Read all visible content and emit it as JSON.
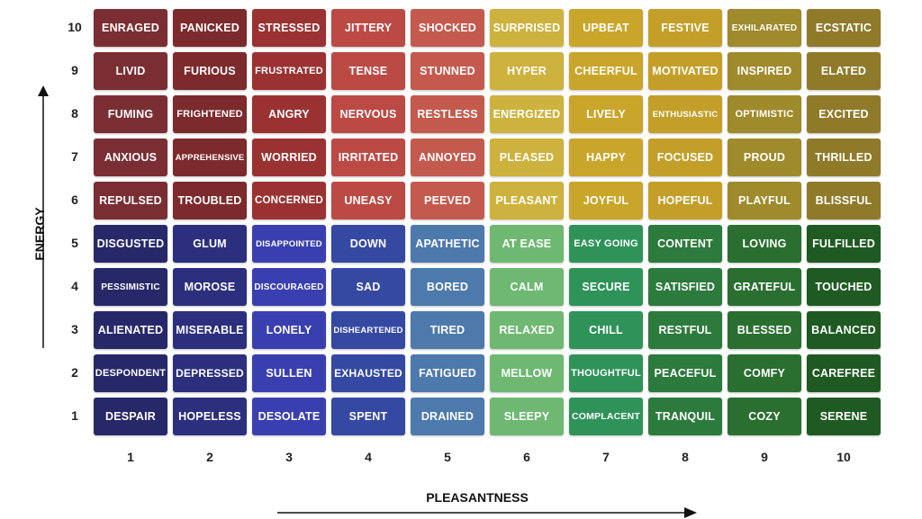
{
  "axes": {
    "y_label": "ENERGY",
    "x_label": "PLEASANTNESS",
    "y_ticks": [
      "10",
      "9",
      "8",
      "7",
      "6",
      "5",
      "4",
      "3",
      "2",
      "1"
    ],
    "x_ticks": [
      "1",
      "2",
      "3",
      "4",
      "5",
      "6",
      "7",
      "8",
      "9",
      "10"
    ]
  },
  "rows": [
    {
      "energy": "10",
      "cells": [
        "ENRAGED",
        "PANICKED",
        "STRESSED",
        "JITTERY",
        "SHOCKED",
        "SURPRISED",
        "UPBEAT",
        "FESTIVE",
        "EXHILARATED",
        "ECSTATIC"
      ],
      "colors": [
        "#7a2e33",
        "#7d2a2c",
        "#9a3232",
        "#bb4a45",
        "#c45a4e",
        "#cdb23d",
        "#c9a52a",
        "#c39f2a",
        "#9f8a2c",
        "#8f7a2a"
      ]
    },
    {
      "energy": "9",
      "cells": [
        "LIVID",
        "FURIOUS",
        "FRUSTRATED",
        "TENSE",
        "STUNNED",
        "HYPER",
        "CHEERFUL",
        "MOTIVATED",
        "INSPIRED",
        "ELATED"
      ],
      "colors": [
        "#7a2e33",
        "#7d2a2c",
        "#9a3232",
        "#bb4a45",
        "#c45a4e",
        "#cdb23d",
        "#c9a52a",
        "#c39f2a",
        "#9f8a2c",
        "#8f7a2a"
      ]
    },
    {
      "energy": "8",
      "cells": [
        "FUMING",
        "FRIGHTENED",
        "ANGRY",
        "NERVOUS",
        "RESTLESS",
        "ENERGIZED",
        "LIVELY",
        "ENTHUSIASTIC",
        "OPTIMISTIC",
        "EXCITED"
      ],
      "colors": [
        "#7a2e33",
        "#7d2a2c",
        "#9a3232",
        "#bb4a45",
        "#c45a4e",
        "#cdb23d",
        "#c9a52a",
        "#c39f2a",
        "#9f8a2c",
        "#8f7a2a"
      ]
    },
    {
      "energy": "7",
      "cells": [
        "ANXIOUS",
        "APPREHENSIVE",
        "WORRIED",
        "IRRITATED",
        "ANNOYED",
        "PLEASED",
        "HAPPY",
        "FOCUSED",
        "PROUD",
        "THRILLED"
      ],
      "colors": [
        "#7a2e33",
        "#7d2a2c",
        "#9a3232",
        "#bb4a45",
        "#c45a4e",
        "#cdb23d",
        "#c9a52a",
        "#c39f2a",
        "#9f8a2c",
        "#8f7a2a"
      ]
    },
    {
      "energy": "6",
      "cells": [
        "REPULSED",
        "TROUBLED",
        "CONCERNED",
        "UNEASY",
        "PEEVED",
        "PLEASANT",
        "JOYFUL",
        "HOPEFUL",
        "PLAYFUL",
        "BLISSFUL"
      ],
      "colors": [
        "#7a2e33",
        "#7d2a2c",
        "#9a3232",
        "#bb4a45",
        "#c45a4e",
        "#cdb23d",
        "#c9a52a",
        "#c39f2a",
        "#9f8a2c",
        "#8f7a2a"
      ]
    },
    {
      "energy": "5",
      "cells": [
        "DISGUSTED",
        "GLUM",
        "DISAPPOINTED",
        "DOWN",
        "APATHETIC",
        "AT EASE",
        "EASY GOING",
        "CONTENT",
        "LOVING",
        "FULFILLED"
      ],
      "colors": [
        "#27286a",
        "#2b2f7d",
        "#3a3fb0",
        "#3549a3",
        "#4d79ad",
        "#6fb872",
        "#2f9359",
        "#2c7a3c",
        "#2a6f30",
        "#1f5a22"
      ]
    },
    {
      "energy": "4",
      "cells": [
        "PESSIMISTIC",
        "MOROSE",
        "DISCOURAGED",
        "SAD",
        "BORED",
        "CALM",
        "SECURE",
        "SATISFIED",
        "GRATEFUL",
        "TOUCHED"
      ],
      "colors": [
        "#27286a",
        "#2b2f7d",
        "#3a3fb0",
        "#3549a3",
        "#4d79ad",
        "#6fb872",
        "#2f9359",
        "#2c7a3c",
        "#2a6f30",
        "#1f5a22"
      ]
    },
    {
      "energy": "3",
      "cells": [
        "ALIENATED",
        "MISERABLE",
        "LONELY",
        "DISHEARTENED",
        "TIRED",
        "RELAXED",
        "CHILL",
        "RESTFUL",
        "BLESSED",
        "BALANCED"
      ],
      "colors": [
        "#27286a",
        "#2b2f7d",
        "#3a3fb0",
        "#3549a3",
        "#4d79ad",
        "#6fb872",
        "#2f9359",
        "#2c7a3c",
        "#2a6f30",
        "#1f5a22"
      ]
    },
    {
      "energy": "2",
      "cells": [
        "DESPONDENT",
        "DEPRESSED",
        "SULLEN",
        "EXHAUSTED",
        "FATIGUED",
        "MELLOW",
        "THOUGHTFUL",
        "PEACEFUL",
        "COMFY",
        "CAREFREE"
      ],
      "colors": [
        "#27286a",
        "#2b2f7d",
        "#3a3fb0",
        "#3549a3",
        "#4d79ad",
        "#6fb872",
        "#2f9359",
        "#2c7a3c",
        "#2a6f30",
        "#1f5a22"
      ]
    },
    {
      "energy": "1",
      "cells": [
        "DESPAIR",
        "HOPELESS",
        "DESOLATE",
        "SPENT",
        "DRAINED",
        "SLEEPY",
        "COMPLACENT",
        "TRANQUIL",
        "COZY",
        "SERENE"
      ],
      "colors": [
        "#27286a",
        "#2b2f7d",
        "#3a3fb0",
        "#3549a3",
        "#4d79ad",
        "#6fb872",
        "#2f9359",
        "#2c7a3c",
        "#2a6f30",
        "#1f5a22"
      ]
    }
  ]
}
